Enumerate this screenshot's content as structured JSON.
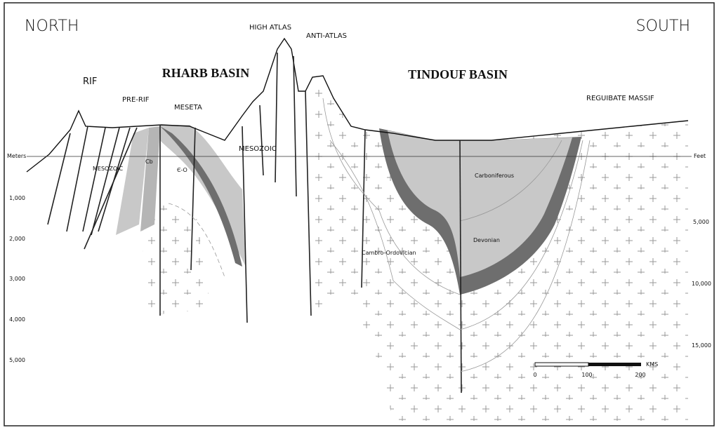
{
  "labels": {
    "north": "NORTH",
    "south": "SOUTH",
    "rif": "RIF",
    "pre_rif": "PRE-RIF",
    "rharb_basin": "RHARB BASIN",
    "meseta": "MESETA",
    "high_atlas": "HIGH ATLAS",
    "anti_atlas": "ANTI-ATLAS",
    "tindouf_basin": "TINDOUF BASIN",
    "reguibate_massif": "REGUIBATE MASSIF",
    "mesozoic_atlas": "MESOZOIC",
    "mesozoic_rif": "MESOZOIC",
    "cb": "Cb",
    "cambro_ordovician_short": "Є-O",
    "carboniferous": "Carboniferous",
    "devonian": "Devonian",
    "cambro_ordovician": "Cambro-Ordovician"
  },
  "left_axis": {
    "title": "Meters",
    "ticks": [
      "1,000",
      "2,000",
      "3,000",
      "4,000",
      "5,000"
    ]
  },
  "right_axis": {
    "title": "Feet",
    "ticks": [
      "5,000",
      "10,000",
      "15,000"
    ]
  },
  "scale_bar": {
    "unit": "KMS",
    "ticks": [
      "0",
      "100",
      "200"
    ]
  }
}
